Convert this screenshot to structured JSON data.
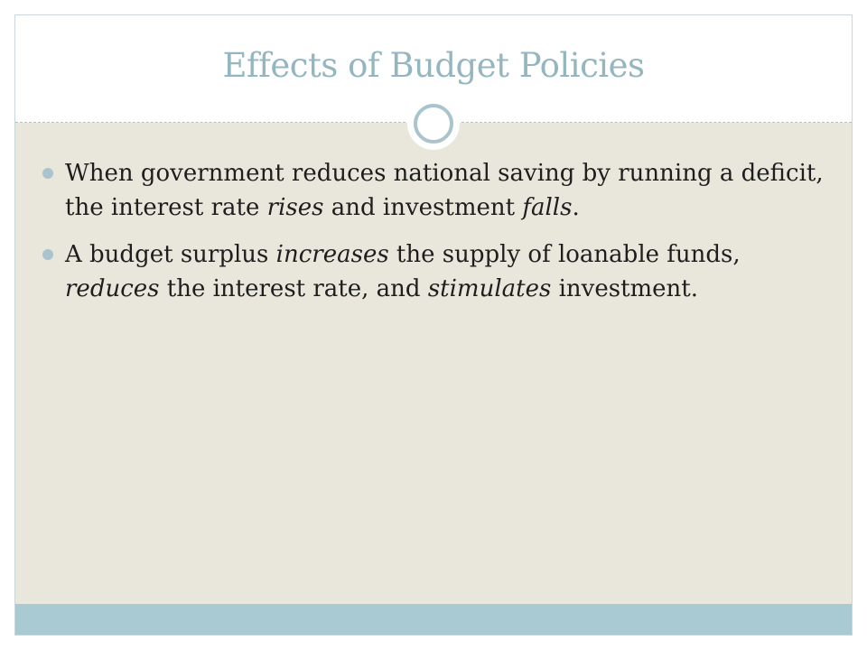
{
  "slide": {
    "title": "Effects of Budget Policies",
    "bullets": [
      {
        "segments": [
          {
            "text": "When government reduces national saving by running a deficit, the interest rate ",
            "italic": false
          },
          {
            "text": "rises",
            "italic": true
          },
          {
            "text": " and investment ",
            "italic": false
          },
          {
            "text": "falls",
            "italic": true
          },
          {
            "text": ".",
            "italic": false
          }
        ]
      },
      {
        "segments": [
          {
            "text": "A budget surplus ",
            "italic": false
          },
          {
            "text": "increases",
            "italic": true
          },
          {
            "text": " the supply of loanable funds, ",
            "italic": false
          },
          {
            "text": "reduces",
            "italic": true
          },
          {
            "text": " the interest rate, and ",
            "italic": false
          },
          {
            "text": "stimulates",
            "italic": true
          },
          {
            "text": " investment.",
            "italic": false
          }
        ]
      }
    ]
  },
  "theme": {
    "title_color": "#94b6c0",
    "accent_color": "#a9c4cc",
    "content_background": "#e9e7dc",
    "text_color": "#1e1e1e"
  }
}
